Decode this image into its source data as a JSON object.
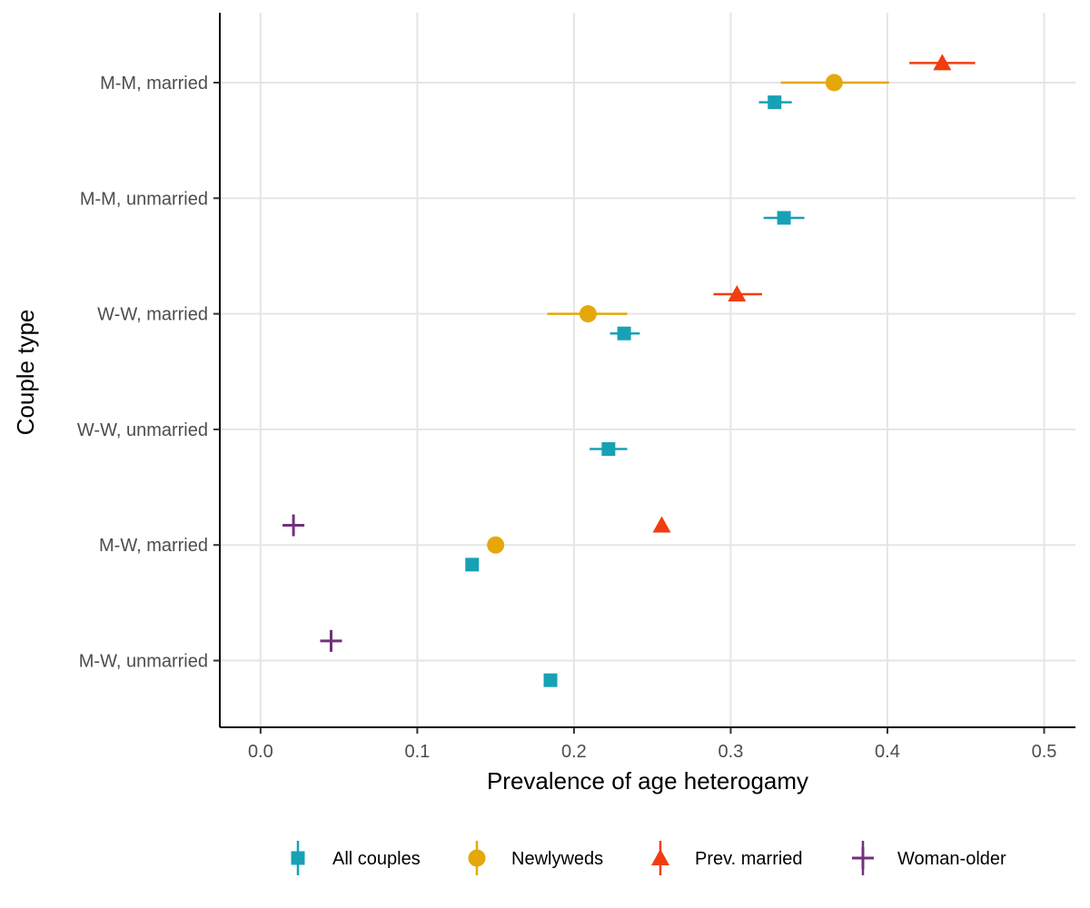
{
  "chart_data": {
    "type": "scatter",
    "xlabel": "Prevalence of age heterogamy",
    "ylabel": "Couple type",
    "xlim": [
      -0.026,
      0.52
    ],
    "x_ticks": [
      0.0,
      0.1,
      0.2,
      0.3,
      0.4,
      0.5
    ],
    "x_tick_labels": [
      "0.0",
      "0.1",
      "0.2",
      "0.3",
      "0.4",
      "0.5"
    ],
    "categories": [
      "M-M, married",
      "M-M, unmarried",
      "W-W, married",
      "W-W, unmarried",
      "M-W, married",
      "M-W, unmarried"
    ],
    "grid": true,
    "legend_position": "bottom",
    "series": [
      {
        "name": "All couples",
        "color": "#17A1B5",
        "marker": "square",
        "dodge": -0.17,
        "points": [
          {
            "category": "M-M, married",
            "x": 0.328,
            "lo": 0.318,
            "hi": 0.339
          },
          {
            "category": "M-M, unmarried",
            "x": 0.334,
            "lo": 0.321,
            "hi": 0.347
          },
          {
            "category": "W-W, married",
            "x": 0.232,
            "lo": 0.223,
            "hi": 0.242
          },
          {
            "category": "W-W, unmarried",
            "x": 0.222,
            "lo": 0.21,
            "hi": 0.234
          },
          {
            "category": "M-W, married",
            "x": 0.135,
            "lo": 0.1345,
            "hi": 0.1355
          },
          {
            "category": "M-W, unmarried",
            "x": 0.185,
            "lo": 0.1845,
            "hi": 0.1855
          }
        ]
      },
      {
        "name": "Newlyweds",
        "color": "#E4A80A",
        "marker": "circle",
        "dodge": 0.0,
        "points": [
          {
            "category": "M-M, married",
            "x": 0.366,
            "lo": 0.332,
            "hi": 0.401
          },
          {
            "category": "W-W, married",
            "x": 0.209,
            "lo": 0.183,
            "hi": 0.234
          },
          {
            "category": "M-W, married",
            "x": 0.15,
            "lo": 0.149,
            "hi": 0.151
          }
        ]
      },
      {
        "name": "Prev. married",
        "color": "#F23D10",
        "marker": "triangle",
        "dodge": 0.17,
        "points": [
          {
            "category": "M-M, married",
            "x": 0.435,
            "lo": 0.414,
            "hi": 0.456
          },
          {
            "category": "W-W, married",
            "x": 0.304,
            "lo": 0.289,
            "hi": 0.32
          },
          {
            "category": "M-W, married",
            "x": 0.256,
            "lo": 0.255,
            "hi": 0.257
          }
        ]
      },
      {
        "name": "Woman-older",
        "color": "#73307D",
        "marker": "cross",
        "dodge": 0.17,
        "points": [
          {
            "category": "M-W, married",
            "x": 0.021,
            "lo": 0.02,
            "hi": 0.022
          },
          {
            "category": "M-W, unmarried",
            "x": 0.045,
            "lo": 0.044,
            "hi": 0.046
          }
        ]
      }
    ]
  }
}
